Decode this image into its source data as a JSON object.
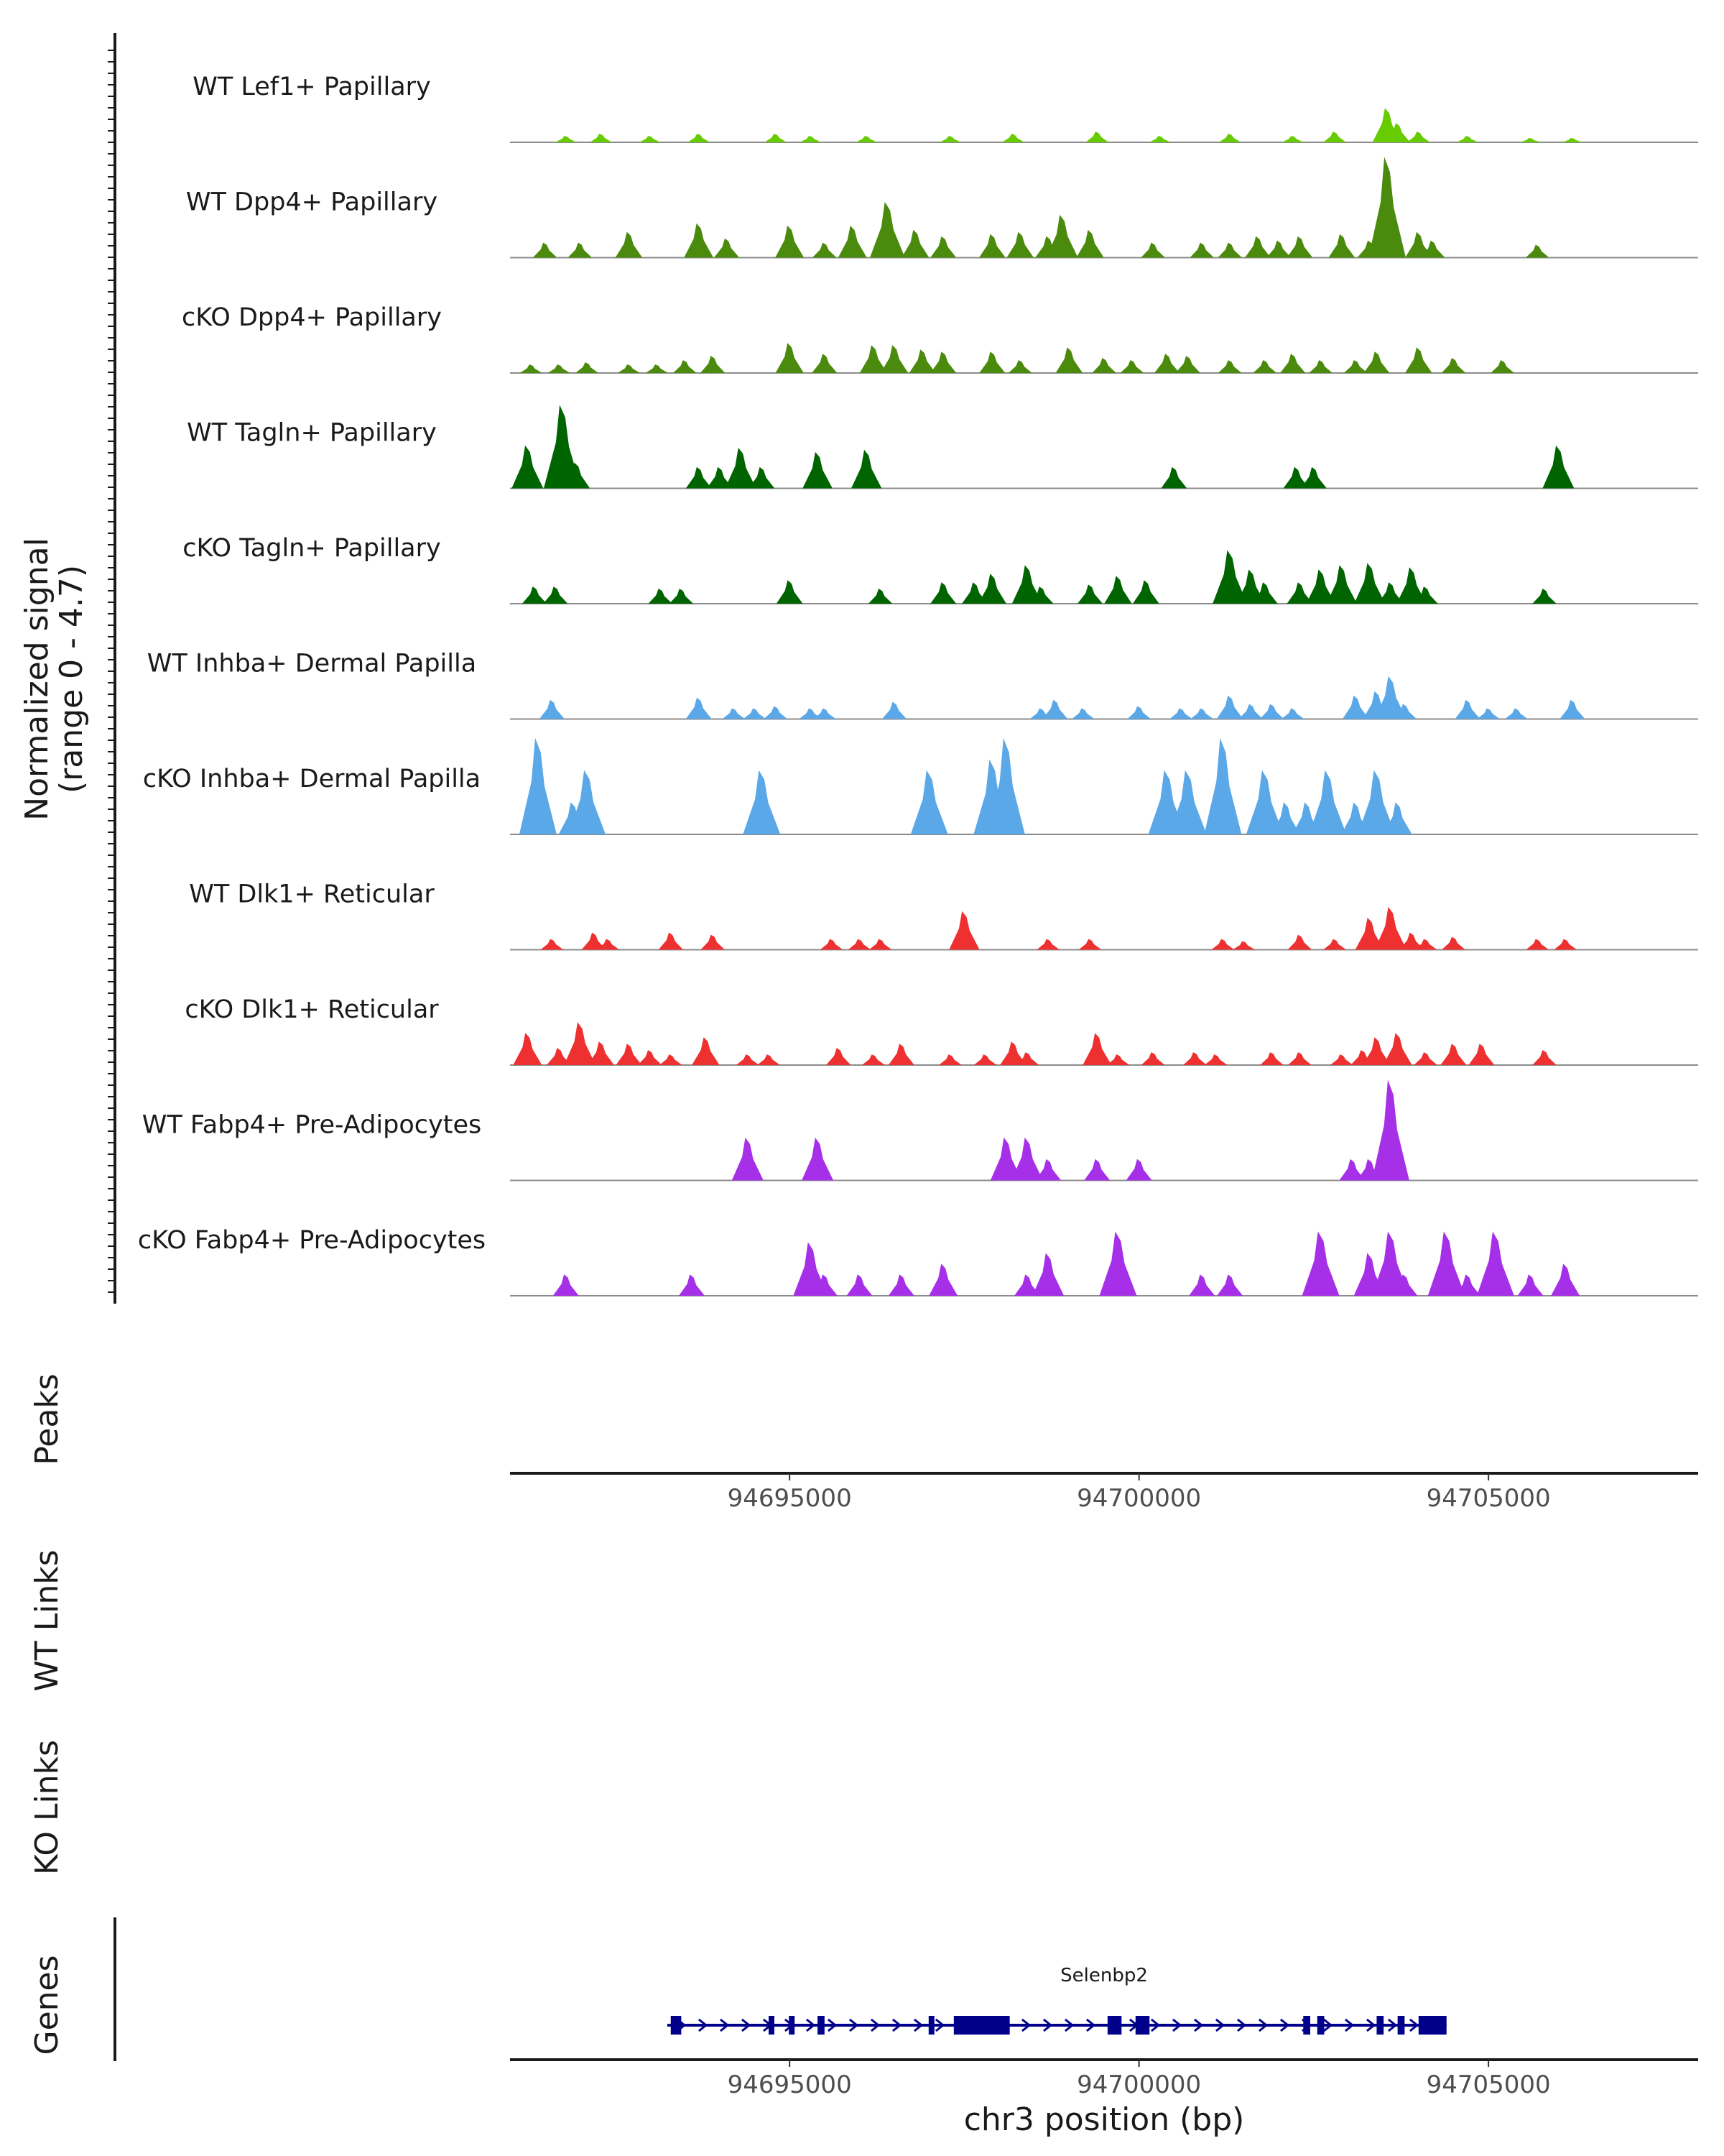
{
  "chart_data": {
    "type": "coverage-tracks",
    "chromosome": "chr3",
    "xlim": [
      94691000,
      94708000
    ],
    "x_ticks": [
      94695000,
      94700000,
      94705000
    ],
    "x_tick_labels": [
      "94695000",
      "94700000",
      "94705000"
    ],
    "xlabel": "chr3 position (bp)",
    "ylabel_line1": "Normalized signal",
    "ylabel_line2": "(range 0 - 4.7)",
    "signal_range": [
      0,
      4.7
    ],
    "panel_labels": {
      "peaks": "Peaks",
      "wt_links": "WT Links",
      "ko_links": "KO Links",
      "genes": "Genes"
    },
    "tracks": [
      {
        "name": "WT Lef1+ Papillary",
        "color": "#66cc00",
        "peaks": [
          [
            94691800,
            0.3
          ],
          [
            94692300,
            0.4
          ],
          [
            94693000,
            0.3
          ],
          [
            94693700,
            0.4
          ],
          [
            94694800,
            0.4
          ],
          [
            94695300,
            0.3
          ],
          [
            94696100,
            0.3
          ],
          [
            94697300,
            0.3
          ],
          [
            94698200,
            0.4
          ],
          [
            94699400,
            0.5
          ],
          [
            94700300,
            0.3
          ],
          [
            94701300,
            0.4
          ],
          [
            94702200,
            0.3
          ],
          [
            94702800,
            0.5
          ],
          [
            94703550,
            1.6
          ],
          [
            94703700,
            0.9
          ],
          [
            94704000,
            0.5
          ],
          [
            94704700,
            0.3
          ],
          [
            94705600,
            0.2
          ],
          [
            94706200,
            0.2
          ]
        ]
      },
      {
        "name": "WT Dpp4+ Papillary",
        "color": "#4a8a0c",
        "peaks": [
          [
            94691500,
            0.7
          ],
          [
            94692000,
            0.7
          ],
          [
            94692700,
            1.2
          ],
          [
            94693700,
            1.6
          ],
          [
            94694100,
            0.9
          ],
          [
            94695000,
            1.5
          ],
          [
            94695500,
            0.7
          ],
          [
            94695900,
            1.5
          ],
          [
            94696400,
            2.6
          ],
          [
            94696800,
            1.3
          ],
          [
            94697200,
            1.0
          ],
          [
            94697900,
            1.1
          ],
          [
            94698300,
            1.2
          ],
          [
            94698700,
            1.0
          ],
          [
            94698900,
            2.0
          ],
          [
            94699300,
            1.3
          ],
          [
            94700200,
            0.7
          ],
          [
            94700900,
            0.7
          ],
          [
            94701300,
            0.7
          ],
          [
            94701700,
            1.0
          ],
          [
            94702000,
            0.8
          ],
          [
            94702300,
            1.0
          ],
          [
            94702900,
            1.1
          ],
          [
            94703300,
            0.8
          ],
          [
            94703550,
            4.7
          ],
          [
            94704000,
            1.2
          ],
          [
            94704200,
            0.8
          ],
          [
            94705700,
            0.6
          ]
        ]
      },
      {
        "name": "cKO Dpp4+ Papillary",
        "color": "#4a8a0c",
        "peaks": [
          [
            94691300,
            0.4
          ],
          [
            94691700,
            0.4
          ],
          [
            94692100,
            0.5
          ],
          [
            94692700,
            0.4
          ],
          [
            94693100,
            0.4
          ],
          [
            94693500,
            0.6
          ],
          [
            94693900,
            0.8
          ],
          [
            94695000,
            1.4
          ],
          [
            94695500,
            0.9
          ],
          [
            94696200,
            1.3
          ],
          [
            94696500,
            1.3
          ],
          [
            94696900,
            1.1
          ],
          [
            94697200,
            1.0
          ],
          [
            94697900,
            1.0
          ],
          [
            94698300,
            0.6
          ],
          [
            94699000,
            1.2
          ],
          [
            94699500,
            0.7
          ],
          [
            94699900,
            0.6
          ],
          [
            94700400,
            0.9
          ],
          [
            94700700,
            0.8
          ],
          [
            94701300,
            0.6
          ],
          [
            94701800,
            0.6
          ],
          [
            94702200,
            0.9
          ],
          [
            94702600,
            0.6
          ],
          [
            94703100,
            0.6
          ],
          [
            94703400,
            1.0
          ],
          [
            94704000,
            1.2
          ],
          [
            94704500,
            0.7
          ],
          [
            94705200,
            0.6
          ]
        ]
      },
      {
        "name": "WT Tagln+ Papillary",
        "color": "#006400",
        "peaks": [
          [
            94691250,
            2.0
          ],
          [
            94691750,
            3.9
          ],
          [
            94691950,
            1.2
          ],
          [
            94693700,
            1.0
          ],
          [
            94694000,
            1.0
          ],
          [
            94694300,
            1.9
          ],
          [
            94694600,
            1.0
          ],
          [
            94695400,
            1.7
          ],
          [
            94696100,
            1.8
          ],
          [
            94700500,
            1.0
          ],
          [
            94702250,
            1.0
          ],
          [
            94702500,
            1.0
          ],
          [
            94706000,
            2.0
          ]
        ]
      },
      {
        "name": "cKO Tagln+ Papillary",
        "color": "#006400",
        "peaks": [
          [
            94691350,
            0.8
          ],
          [
            94691650,
            0.8
          ],
          [
            94693150,
            0.7
          ],
          [
            94693450,
            0.7
          ],
          [
            94695000,
            1.1
          ],
          [
            94696300,
            0.7
          ],
          [
            94697200,
            1.0
          ],
          [
            94697650,
            1.0
          ],
          [
            94697900,
            1.4
          ],
          [
            94698400,
            1.8
          ],
          [
            94698600,
            0.8
          ],
          [
            94699300,
            0.9
          ],
          [
            94699700,
            1.3
          ],
          [
            94700100,
            1.1
          ],
          [
            94701300,
            2.5
          ],
          [
            94701600,
            1.6
          ],
          [
            94701800,
            1.0
          ],
          [
            94702300,
            1.0
          ],
          [
            94702600,
            1.6
          ],
          [
            94702900,
            1.8
          ],
          [
            94703300,
            1.9
          ],
          [
            94703600,
            1.0
          ],
          [
            94703900,
            1.7
          ],
          [
            94704100,
            0.8
          ],
          [
            94705800,
            0.7
          ]
        ]
      },
      {
        "name": "WT Inhba+ Dermal Papilla",
        "color": "#5aa8e8",
        "peaks": [
          [
            94691600,
            0.9
          ],
          [
            94693700,
            1.0
          ],
          [
            94694200,
            0.5
          ],
          [
            94694500,
            0.5
          ],
          [
            94694800,
            0.6
          ],
          [
            94695300,
            0.5
          ],
          [
            94695500,
            0.5
          ],
          [
            94696500,
            0.8
          ],
          [
            94698600,
            0.5
          ],
          [
            94698800,
            0.9
          ],
          [
            94699200,
            0.5
          ],
          [
            94700000,
            0.6
          ],
          [
            94700600,
            0.5
          ],
          [
            94700900,
            0.5
          ],
          [
            94701300,
            1.1
          ],
          [
            94701600,
            0.7
          ],
          [
            94701900,
            0.7
          ],
          [
            94702200,
            0.5
          ],
          [
            94703100,
            1.1
          ],
          [
            94703400,
            1.3
          ],
          [
            94703600,
            2.0
          ],
          [
            94703800,
            0.7
          ],
          [
            94704700,
            0.9
          ],
          [
            94705000,
            0.5
          ],
          [
            94705400,
            0.5
          ],
          [
            94706200,
            0.9
          ]
        ]
      },
      {
        "name": "cKO Inhba+ Dermal Papilla",
        "color": "#5aa8e8",
        "peaks": [
          [
            94691400,
            4.5
          ],
          [
            94691900,
            1.5
          ],
          [
            94692100,
            3.0
          ],
          [
            94694600,
            3.0
          ],
          [
            94697000,
            3.0
          ],
          [
            94697900,
            3.5
          ],
          [
            94698100,
            4.5
          ],
          [
            94700400,
            3.0
          ],
          [
            94700700,
            3.0
          ],
          [
            94701200,
            4.5
          ],
          [
            94701800,
            3.0
          ],
          [
            94702100,
            1.5
          ],
          [
            94702400,
            1.5
          ],
          [
            94702700,
            3.0
          ],
          [
            94703100,
            1.5
          ],
          [
            94703400,
            3.0
          ],
          [
            94703700,
            1.5
          ]
        ]
      },
      {
        "name": "WT Dlk1+ Reticular",
        "color": "#ee3030",
        "peaks": [
          [
            94691600,
            0.5
          ],
          [
            94692200,
            0.8
          ],
          [
            94692400,
            0.5
          ],
          [
            94693300,
            0.8
          ],
          [
            94693900,
            0.7
          ],
          [
            94695600,
            0.5
          ],
          [
            94696000,
            0.5
          ],
          [
            94696300,
            0.5
          ],
          [
            94697500,
            1.8
          ],
          [
            94698700,
            0.5
          ],
          [
            94699300,
            0.5
          ],
          [
            94701200,
            0.5
          ],
          [
            94701500,
            0.4
          ],
          [
            94702300,
            0.7
          ],
          [
            94702800,
            0.5
          ],
          [
            94703300,
            1.5
          ],
          [
            94703600,
            2.0
          ],
          [
            94703900,
            0.8
          ],
          [
            94704100,
            0.5
          ],
          [
            94704500,
            0.6
          ],
          [
            94705700,
            0.5
          ],
          [
            94706100,
            0.5
          ]
        ]
      },
      {
        "name": "cKO Dlk1+ Reticular",
        "color": "#ee3030",
        "peaks": [
          [
            94691250,
            1.5
          ],
          [
            94691700,
            0.8
          ],
          [
            94692000,
            2.0
          ],
          [
            94692300,
            1.1
          ],
          [
            94692700,
            1.0
          ],
          [
            94693000,
            0.7
          ],
          [
            94693300,
            0.5
          ],
          [
            94693800,
            1.3
          ],
          [
            94694400,
            0.5
          ],
          [
            94694700,
            0.5
          ],
          [
            94695700,
            0.8
          ],
          [
            94696200,
            0.5
          ],
          [
            94696600,
            1.0
          ],
          [
            94697300,
            0.5
          ],
          [
            94697800,
            0.5
          ],
          [
            94698200,
            1.1
          ],
          [
            94698400,
            0.6
          ],
          [
            94699400,
            1.5
          ],
          [
            94699700,
            0.5
          ],
          [
            94700200,
            0.6
          ],
          [
            94700800,
            0.6
          ],
          [
            94701100,
            0.5
          ],
          [
            94701900,
            0.6
          ],
          [
            94702300,
            0.6
          ],
          [
            94702900,
            0.5
          ],
          [
            94703200,
            0.7
          ],
          [
            94703400,
            1.3
          ],
          [
            94703700,
            1.5
          ],
          [
            94704100,
            0.6
          ],
          [
            94704500,
            1.0
          ],
          [
            94704900,
            1.0
          ],
          [
            94705800,
            0.7
          ]
        ]
      },
      {
        "name": "WT Fabp4+ Pre-Adipocytes",
        "color": "#a630e8",
        "peaks": [
          [
            94694400,
            2.0
          ],
          [
            94695400,
            2.0
          ],
          [
            94698100,
            2.0
          ],
          [
            94698400,
            2.0
          ],
          [
            94698700,
            1.0
          ],
          [
            94699400,
            1.0
          ],
          [
            94700000,
            1.0
          ],
          [
            94703050,
            1.0
          ],
          [
            94703300,
            1.0
          ],
          [
            94703600,
            4.7
          ]
        ]
      },
      {
        "name": "cKO Fabp4+ Pre-Adipocytes",
        "color": "#a630e8",
        "peaks": [
          [
            94691800,
            1.0
          ],
          [
            94693600,
            1.0
          ],
          [
            94695300,
            2.5
          ],
          [
            94695500,
            1.0
          ],
          [
            94696000,
            1.0
          ],
          [
            94696600,
            1.0
          ],
          [
            94697200,
            1.5
          ],
          [
            94698400,
            1.0
          ],
          [
            94698700,
            2.0
          ],
          [
            94699700,
            3.0
          ],
          [
            94700900,
            1.0
          ],
          [
            94701300,
            1.0
          ],
          [
            94702600,
            3.0
          ],
          [
            94703300,
            2.0
          ],
          [
            94703600,
            3.0
          ],
          [
            94703800,
            1.0
          ],
          [
            94704400,
            3.0
          ],
          [
            94704700,
            1.0
          ],
          [
            94705100,
            3.0
          ],
          [
            94705600,
            1.0
          ],
          [
            94706100,
            1.5
          ]
        ]
      }
    ],
    "gene": {
      "name": "Selenbp2",
      "color": "#00008b",
      "strand": "+",
      "start": 94693250,
      "end": 94704400,
      "exons": [
        [
          94693300,
          94693450
        ],
        [
          94694700,
          94694780
        ],
        [
          94694990,
          94695060
        ],
        [
          94695400,
          94695500
        ],
        [
          94696990,
          94697050
        ],
        [
          94697350,
          94698150
        ],
        [
          94699550,
          94699750
        ],
        [
          94699950,
          94700150
        ],
        [
          94702350,
          94702450
        ],
        [
          94702550,
          94702650
        ],
        [
          94703400,
          94703500
        ],
        [
          94703700,
          94703800
        ],
        [
          94704000,
          94704400
        ]
      ]
    }
  }
}
